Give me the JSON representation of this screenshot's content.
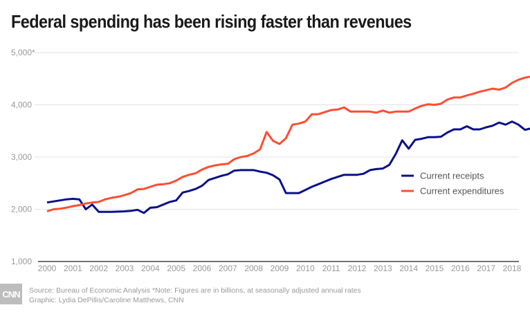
{
  "chart_data": {
    "type": "line",
    "title": "Federal spending has been rising faster than revenues",
    "xlabel": "",
    "ylabel": "",
    "ylim": [
      1000,
      5000
    ],
    "xlim": [
      2000,
      2018.9
    ],
    "y_ticks": [
      "1,000",
      "2,000",
      "3,000",
      "4,000",
      "5,000*"
    ],
    "y_tick_values": [
      1000,
      2000,
      3000,
      4000,
      5000
    ],
    "x_ticks": [
      "2000",
      "2001",
      "2002",
      "2003",
      "2004",
      "2005",
      "2006",
      "2007",
      "2008",
      "2009",
      "2010",
      "2011",
      "2012",
      "2013",
      "2014",
      "2015",
      "2016",
      "2017",
      "2018"
    ],
    "x_start": 2000,
    "x_step": 0.25,
    "grid": true,
    "legend_position": "right-middle",
    "series": [
      {
        "name": "Current receipts",
        "color": "#0a0f8c",
        "values": [
          2130,
          2150,
          2170,
          2190,
          2200,
          2190,
          2000,
          2090,
          1950,
          1950,
          1950,
          1955,
          1960,
          1970,
          1990,
          1930,
          2030,
          2040,
          2090,
          2140,
          2170,
          2320,
          2350,
          2390,
          2450,
          2560,
          2600,
          2640,
          2670,
          2740,
          2750,
          2750,
          2750,
          2720,
          2700,
          2650,
          2570,
          2310,
          2310,
          2310,
          2370,
          2430,
          2480,
          2530,
          2580,
          2620,
          2660,
          2660,
          2660,
          2680,
          2750,
          2770,
          2780,
          2850,
          3060,
          3320,
          3160,
          3330,
          3350,
          3380,
          3380,
          3390,
          3470,
          3530,
          3530,
          3590,
          3530,
          3530,
          3570,
          3600,
          3660,
          3620,
          3680,
          3620,
          3520,
          3550
        ]
      },
      {
        "name": "Current expenditures",
        "color": "#fe4d32",
        "values": [
          1960,
          2000,
          2010,
          2030,
          2060,
          2080,
          2110,
          2130,
          2140,
          2190,
          2220,
          2240,
          2270,
          2310,
          2380,
          2390,
          2430,
          2470,
          2480,
          2500,
          2550,
          2620,
          2660,
          2690,
          2760,
          2810,
          2840,
          2860,
          2870,
          2960,
          3000,
          3020,
          3070,
          3150,
          3480,
          3310,
          3250,
          3360,
          3620,
          3640,
          3680,
          3820,
          3820,
          3860,
          3900,
          3910,
          3950,
          3870,
          3870,
          3870,
          3870,
          3850,
          3890,
          3850,
          3870,
          3870,
          3870,
          3930,
          3980,
          4010,
          4000,
          4020,
          4100,
          4140,
          4140,
          4180,
          4210,
          4250,
          4280,
          4310,
          4290,
          4330,
          4420,
          4480,
          4520,
          4540
        ]
      }
    ]
  },
  "footer": {
    "logo": "CNN",
    "source": "Source: Bureau of Economic Analysis *Note: Figures are in billions, at seasonally adjusted annual rates",
    "credit": "Graphic: Lydia DePillis/Caroline Matthews, CNN"
  }
}
